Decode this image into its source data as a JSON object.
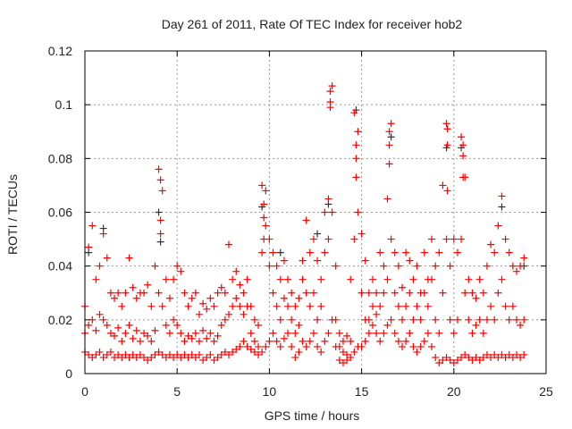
{
  "chart_data": {
    "type": "scatter",
    "title": "Day 261 of 2011, Rate Of TEC Index for receiver hob2",
    "xlabel": "GPS time / hours",
    "ylabel": "ROTI / TECUs",
    "xlim": [
      0,
      25
    ],
    "ylim": [
      0,
      0.12
    ],
    "xticks": [
      0,
      5,
      10,
      15,
      20,
      25
    ],
    "xtick_labels": [
      "0",
      "5",
      "10",
      "15",
      "20",
      "25"
    ],
    "yticks": [
      0,
      0.02,
      0.04,
      0.06,
      0.08,
      0.1,
      0.12
    ],
    "ytick_labels": [
      "0",
      "0.02",
      "0.04",
      "0.06",
      "0.08",
      "0.1",
      "0.12"
    ],
    "grid": true,
    "marker": "plus",
    "colors": {
      "primary": "#ff0000",
      "secondary": "#333333",
      "grid": "#999999"
    },
    "series": [
      {
        "name": "secondary",
        "color": "#333333",
        "points": [
          [
            0.2,
            0.045
          ],
          [
            1.0,
            0.054
          ],
          [
            4.0,
            0.06
          ],
          [
            4.1,
            0.049
          ],
          [
            9.6,
            0.062
          ],
          [
            10.6,
            0.045
          ],
          [
            12.6,
            0.052
          ],
          [
            13.2,
            0.063
          ],
          [
            14.7,
            0.098
          ],
          [
            16.6,
            0.088
          ],
          [
            19.6,
            0.084
          ],
          [
            20.4,
            0.084
          ],
          [
            22.6,
            0.062
          ],
          [
            23.8,
            0.04
          ]
        ]
      },
      {
        "name": "primary",
        "color": "#ff0000",
        "rows": [
          [
            0.0,
            [
              0.008,
              0.015,
              0.025
            ]
          ],
          [
            0.2,
            [
              0.007,
              0.018,
              0.047
            ]
          ],
          [
            0.4,
            [
              0.006,
              0.02,
              0.055
            ]
          ],
          [
            0.6,
            [
              0.007,
              0.016,
              0.035
            ]
          ],
          [
            0.8,
            [
              0.008,
              0.022,
              0.04
            ]
          ],
          [
            1.0,
            [
              0.006,
              0.02,
              0.052
            ]
          ],
          [
            1.2,
            [
              0.007,
              0.018,
              0.043
            ]
          ],
          [
            1.4,
            [
              0.008,
              0.015,
              0.03
            ]
          ],
          [
            1.6,
            [
              0.006,
              0.014,
              0.028
            ]
          ],
          [
            1.8,
            [
              0.007,
              0.017,
              0.03
            ]
          ],
          [
            2.0,
            [
              0.006,
              0.012,
              0.025
            ]
          ],
          [
            2.2,
            [
              0.007,
              0.015,
              0.03
            ]
          ],
          [
            2.4,
            [
              0.006,
              0.018,
              0.043
            ]
          ],
          [
            2.6,
            [
              0.007,
              0.013,
              0.032
            ]
          ],
          [
            2.8,
            [
              0.006,
              0.016,
              0.028
            ]
          ],
          [
            3.0,
            [
              0.007,
              0.012,
              0.03
            ]
          ],
          [
            3.2,
            [
              0.006,
              0.015,
              0.03
            ]
          ],
          [
            3.4,
            [
              0.005,
              0.014,
              0.033
            ]
          ],
          [
            3.6,
            [
              0.006,
              0.012,
              0.025
            ]
          ],
          [
            3.8,
            [
              0.007,
              0.016,
              0.04
            ]
          ],
          [
            4.0,
            [
              0.008,
              0.03,
              0.076
            ]
          ],
          [
            4.1,
            [
              0.052,
              0.057,
              0.072
            ]
          ],
          [
            4.2,
            [
              0.007,
              0.025,
              0.068
            ]
          ],
          [
            4.4,
            [
              0.006,
              0.018,
              0.035
            ]
          ],
          [
            4.6,
            [
              0.007,
              0.015,
              0.028
            ]
          ],
          [
            4.8,
            [
              0.006,
              0.02,
              0.035
            ]
          ],
          [
            5.0,
            [
              0.007,
              0.018,
              0.04
            ]
          ],
          [
            5.2,
            [
              0.006,
              0.015,
              0.038
            ]
          ],
          [
            5.4,
            [
              0.007,
              0.012,
              0.03
            ]
          ],
          [
            5.6,
            [
              0.006,
              0.014,
              0.025
            ]
          ],
          [
            5.8,
            [
              0.007,
              0.013,
              0.028
            ]
          ],
          [
            6.0,
            [
              0.006,
              0.015,
              0.03
            ]
          ],
          [
            6.2,
            [
              0.007,
              0.012,
              0.022
            ]
          ],
          [
            6.4,
            [
              0.005,
              0.016,
              0.026
            ]
          ],
          [
            6.6,
            [
              0.006,
              0.013,
              0.024
            ]
          ],
          [
            6.8,
            [
              0.007,
              0.015,
              0.028
            ]
          ],
          [
            7.0,
            [
              0.005,
              0.012,
              0.025
            ]
          ],
          [
            7.2,
            [
              0.006,
              0.014,
              0.03
            ]
          ],
          [
            7.4,
            [
              0.007,
              0.018,
              0.032
            ]
          ],
          [
            7.6,
            [
              0.008,
              0.02,
              0.03
            ]
          ],
          [
            7.8,
            [
              0.007,
              0.022,
              0.048
            ]
          ],
          [
            8.0,
            [
              0.008,
              0.025,
              0.035
            ]
          ],
          [
            8.2,
            [
              0.009,
              0.028,
              0.038
            ]
          ],
          [
            8.4,
            [
              0.01,
              0.025,
              0.033
            ]
          ],
          [
            8.6,
            [
              0.012,
              0.022,
              0.03
            ]
          ],
          [
            8.8,
            [
              0.01,
              0.025,
              0.035
            ]
          ],
          [
            9.0,
            [
              0.009,
              0.015,
              0.025
            ]
          ],
          [
            9.2,
            [
              0.008,
              0.012,
              0.02
            ]
          ],
          [
            9.4,
            [
              0.007,
              0.01,
              0.018
            ]
          ],
          [
            9.6,
            [
              0.008,
              0.045,
              0.07
            ]
          ],
          [
            9.7,
            [
              0.05,
              0.058,
              0.063
            ]
          ],
          [
            9.8,
            [
              0.01,
              0.055,
              0.068
            ]
          ],
          [
            10.0,
            [
              0.012,
              0.04,
              0.05
            ]
          ],
          [
            10.2,
            [
              0.015,
              0.03,
              0.045
            ]
          ],
          [
            10.4,
            [
              0.012,
              0.025,
              0.04
            ]
          ],
          [
            10.6,
            [
              0.01,
              0.02,
              0.035
            ]
          ],
          [
            10.8,
            [
              0.013,
              0.028,
              0.042
            ]
          ],
          [
            11.0,
            [
              0.015,
              0.025,
              0.035
            ]
          ],
          [
            11.2,
            [
              0.01,
              0.02,
              0.03
            ]
          ],
          [
            11.4,
            [
              0.006,
              0.015,
              0.025
            ]
          ],
          [
            11.6,
            [
              0.008,
              0.018,
              0.028
            ]
          ],
          [
            11.8,
            [
              0.012,
              0.035,
              0.042
            ]
          ],
          [
            12.0,
            [
              0.01,
              0.03,
              0.057
            ]
          ],
          [
            12.2,
            [
              0.012,
              0.025,
              0.045
            ]
          ],
          [
            12.4,
            [
              0.015,
              0.03,
              0.05
            ]
          ],
          [
            12.6,
            [
              0.01,
              0.02,
              0.042
            ]
          ],
          [
            12.8,
            [
              0.008,
              0.025,
              0.035
            ]
          ],
          [
            13.0,
            [
              0.012,
              0.045,
              0.06
            ]
          ],
          [
            13.2,
            [
              0.015,
              0.05,
              0.065
            ]
          ],
          [
            13.3,
            [
              0.099,
              0.101,
              0.105
            ]
          ],
          [
            13.4,
            [
              0.02,
              0.06,
              0.107
            ]
          ],
          [
            13.6,
            [
              0.01,
              0.02,
              0.04
            ]
          ],
          [
            13.8,
            [
              0.005,
              0.01,
              0.015
            ]
          ],
          [
            14.0,
            [
              0.004,
              0.008,
              0.012
            ]
          ],
          [
            14.2,
            [
              0.005,
              0.007,
              0.014
            ]
          ],
          [
            14.4,
            [
              0.006,
              0.012,
              0.035
            ]
          ],
          [
            14.6,
            [
              0.008,
              0.05,
              0.097
            ]
          ],
          [
            14.7,
            [
              0.073,
              0.08,
              0.085
            ]
          ],
          [
            14.8,
            [
              0.01,
              0.06,
              0.09
            ]
          ],
          [
            15.0,
            [
              0.01,
              0.03,
              0.052
            ]
          ],
          [
            15.2,
            [
              0.012,
              0.02,
              0.042
            ]
          ],
          [
            15.4,
            [
              0.015,
              0.02,
              0.03
            ]
          ],
          [
            15.6,
            [
              0.018,
              0.025,
              0.035
            ]
          ],
          [
            15.8,
            [
              0.015,
              0.022,
              0.03
            ]
          ],
          [
            16.0,
            [
              0.012,
              0.025,
              0.045
            ]
          ],
          [
            16.2,
            [
              0.015,
              0.03,
              0.04
            ]
          ],
          [
            16.4,
            [
              0.018,
              0.035,
              0.065
            ]
          ],
          [
            16.5,
            [
              0.078,
              0.085,
              0.09
            ]
          ],
          [
            16.6,
            [
              0.02,
              0.05,
              0.093
            ]
          ],
          [
            16.8,
            [
              0.015,
              0.03,
              0.045
            ]
          ],
          [
            17.0,
            [
              0.012,
              0.025,
              0.04
            ]
          ],
          [
            17.2,
            [
              0.01,
              0.02,
              0.032
            ]
          ],
          [
            17.4,
            [
              0.012,
              0.025,
              0.045
            ]
          ],
          [
            17.6,
            [
              0.015,
              0.03,
              0.042
            ]
          ],
          [
            17.8,
            [
              0.01,
              0.02,
              0.035
            ]
          ],
          [
            18.0,
            [
              0.008,
              0.025,
              0.04
            ]
          ],
          [
            18.2,
            [
              0.01,
              0.02,
              0.03
            ]
          ],
          [
            18.4,
            [
              0.012,
              0.03,
              0.045
            ]
          ],
          [
            18.6,
            [
              0.015,
              0.025,
              0.035
            ]
          ],
          [
            18.8,
            [
              0.01,
              0.035,
              0.05
            ]
          ],
          [
            19.0,
            [
              0.006,
              0.02,
              0.04
            ]
          ],
          [
            19.2,
            [
              0.004,
              0.015,
              0.045
            ]
          ],
          [
            19.4,
            [
              0.005,
              0.03,
              0.07
            ]
          ],
          [
            19.6,
            [
              0.006,
              0.05,
              0.093
            ]
          ],
          [
            19.65,
            [
              0.068,
              0.085,
              0.091
            ]
          ],
          [
            19.8,
            [
              0.005,
              0.02,
              0.04
            ]
          ],
          [
            20.0,
            [
              0.004,
              0.015,
              0.05
            ]
          ],
          [
            20.2,
            [
              0.005,
              0.02,
              0.045
            ]
          ],
          [
            20.4,
            [
              0.006,
              0.05,
              0.088
            ]
          ],
          [
            20.5,
            [
              0.073,
              0.081,
              0.085
            ]
          ],
          [
            20.6,
            [
              0.007,
              0.03,
              0.073
            ]
          ],
          [
            20.8,
            [
              0.006,
              0.02,
              0.035
            ]
          ],
          [
            21.0,
            [
              0.005,
              0.015,
              0.03
            ]
          ],
          [
            21.2,
            [
              0.006,
              0.018,
              0.028
            ]
          ],
          [
            21.4,
            [
              0.005,
              0.02,
              0.035
            ]
          ],
          [
            21.6,
            [
              0.006,
              0.015,
              0.03
            ]
          ],
          [
            21.8,
            [
              0.007,
              0.02,
              0.04
            ]
          ],
          [
            22.0,
            [
              0.006,
              0.025,
              0.048
            ]
          ],
          [
            22.2,
            [
              0.007,
              0.02,
              0.045
            ]
          ],
          [
            22.4,
            [
              0.006,
              0.03,
              0.055
            ]
          ],
          [
            22.6,
            [
              0.007,
              0.035,
              0.066
            ]
          ],
          [
            22.8,
            [
              0.006,
              0.025,
              0.05
            ]
          ],
          [
            23.0,
            [
              0.007,
              0.02,
              0.045
            ]
          ],
          [
            23.2,
            [
              0.006,
              0.025,
              0.04
            ]
          ],
          [
            23.4,
            [
              0.007,
              0.02,
              0.038
            ]
          ],
          [
            23.6,
            [
              0.006,
              0.018,
              0.04
            ]
          ],
          [
            23.8,
            [
              0.007,
              0.02,
              0.043
            ]
          ]
        ]
      }
    ]
  }
}
